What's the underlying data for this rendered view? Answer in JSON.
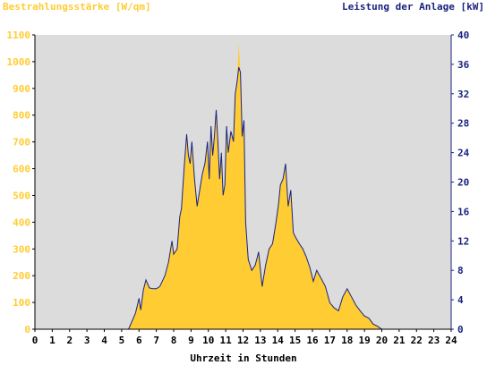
{
  "colors": {
    "plot_bg": "#dcdcdc",
    "irradiance": "#ffcc33",
    "power": "#1a237e",
    "axis_left_text": "#ffcc33",
    "axis_right_text": "#1a237e",
    "x_text": "#000000"
  },
  "chart_data": {
    "type": "area",
    "title_left": "Bestrahlungsstärke [W/qm]",
    "title_right": "Leistung der Anlage [kW]",
    "xlabel": "Uhrzeit in Stunden",
    "x_ticks": [
      "0",
      "1",
      "2",
      "3",
      "4",
      "5",
      "6",
      "7",
      "8",
      "9",
      "10",
      "11",
      "12",
      "13",
      "14",
      "15",
      "16",
      "17",
      "18",
      "19",
      "20",
      "21",
      "22",
      "23",
      "24"
    ],
    "xlim": [
      0,
      24
    ],
    "y_left": {
      "range": [
        0,
        1100
      ],
      "ticks": [
        "0",
        "100",
        "200",
        "300",
        "400",
        "500",
        "600",
        "700",
        "800",
        "900",
        "1000",
        "1100"
      ]
    },
    "y_right": {
      "range": [
        0,
        40
      ],
      "ticks": [
        "0",
        "4",
        "8",
        "12",
        "16",
        "20",
        "24",
        "28",
        "32",
        "36",
        "40"
      ]
    },
    "grid": false,
    "series": [
      {
        "name": "Bestrahlungsstärke [W/qm]",
        "axis": "left",
        "style": "filled-area",
        "x": [
          0,
          5.4,
          5.6,
          5.8,
          6.0,
          6.1,
          6.25,
          6.4,
          6.6,
          6.8,
          7.0,
          7.2,
          7.5,
          7.7,
          7.9,
          8.0,
          8.2,
          8.35,
          8.45,
          8.6,
          8.75,
          8.85,
          8.95,
          9.05,
          9.2,
          9.35,
          9.5,
          9.65,
          9.8,
          9.95,
          10.05,
          10.15,
          10.25,
          10.35,
          10.45,
          10.55,
          10.65,
          10.75,
          10.85,
          10.95,
          11.05,
          11.15,
          11.3,
          11.45,
          11.55,
          11.65,
          11.75,
          11.85,
          11.95,
          12.05,
          12.15,
          12.3,
          12.5,
          12.7,
          12.9,
          13.1,
          13.3,
          13.5,
          13.7,
          13.9,
          14.05,
          14.15,
          14.3,
          14.45,
          14.6,
          14.75,
          14.9,
          15.05,
          15.25,
          15.45,
          15.65,
          15.85,
          16.05,
          16.25,
          16.5,
          16.75,
          17.0,
          17.25,
          17.5,
          17.75,
          18.0,
          18.25,
          18.5,
          18.75,
          19.0,
          19.25,
          19.5,
          19.75,
          20.0,
          20.3,
          24
        ],
        "y": [
          0,
          0,
          30,
          60,
          110,
          70,
          140,
          180,
          150,
          150,
          150,
          160,
          200,
          250,
          330,
          280,
          300,
          420,
          450,
          600,
          740,
          650,
          620,
          700,
          560,
          460,
          520,
          580,
          620,
          700,
          560,
          760,
          650,
          720,
          820,
          700,
          560,
          660,
          500,
          540,
          760,
          660,
          740,
          700,
          880,
          920,
          1070,
          960,
          720,
          780,
          400,
          260,
          220,
          240,
          290,
          160,
          240,
          300,
          320,
          400,
          470,
          540,
          560,
          620,
          460,
          520,
          360,
          340,
          320,
          300,
          270,
          230,
          180,
          220,
          190,
          160,
          100,
          80,
          70,
          120,
          150,
          120,
          90,
          70,
          50,
          40,
          20,
          10,
          0,
          0,
          0
        ]
      },
      {
        "name": "Leistung der Anlage [kW]",
        "axis": "right",
        "style": "line",
        "x": [
          0,
          5.4,
          5.6,
          5.8,
          6.0,
          6.1,
          6.25,
          6.4,
          6.6,
          6.8,
          7.0,
          7.2,
          7.5,
          7.7,
          7.9,
          8.0,
          8.2,
          8.35,
          8.45,
          8.6,
          8.75,
          8.85,
          8.95,
          9.05,
          9.2,
          9.35,
          9.5,
          9.65,
          9.8,
          9.95,
          10.05,
          10.15,
          10.25,
          10.35,
          10.45,
          10.55,
          10.65,
          10.75,
          10.85,
          10.95,
          11.05,
          11.15,
          11.3,
          11.45,
          11.55,
          11.65,
          11.75,
          11.85,
          11.95,
          12.05,
          12.15,
          12.3,
          12.5,
          12.7,
          12.9,
          13.1,
          13.3,
          13.5,
          13.7,
          13.9,
          14.05,
          14.15,
          14.3,
          14.45,
          14.6,
          14.75,
          14.9,
          15.05,
          15.25,
          15.45,
          15.65,
          15.85,
          16.05,
          16.25,
          16.5,
          16.75,
          17.0,
          17.25,
          17.5,
          17.75,
          18.0,
          18.25,
          18.5,
          18.75,
          19.0,
          19.25,
          19.5,
          19.75,
          20.0,
          20.3,
          24
        ],
        "y": [
          0,
          0,
          1.1,
          2.2,
          4.2,
          2.6,
          5.3,
          6.7,
          5.6,
          5.5,
          5.5,
          5.8,
          7.3,
          9.1,
          12.0,
          10.2,
          10.9,
          15.3,
          16.4,
          21.8,
          26.5,
          23.6,
          22.5,
          25.5,
          20.4,
          16.7,
          18.9,
          21.1,
          22.5,
          25.5,
          20.4,
          27.6,
          23.6,
          26.2,
          29.8,
          25.5,
          20.4,
          24.0,
          18.2,
          19.6,
          27.6,
          24.0,
          26.9,
          25.5,
          32.0,
          33.5,
          35.6,
          34.9,
          26.2,
          28.4,
          14.5,
          9.5,
          8.0,
          8.7,
          10.5,
          5.8,
          8.7,
          10.9,
          11.6,
          14.5,
          17.1,
          19.6,
          20.4,
          22.5,
          16.7,
          18.9,
          13.1,
          12.4,
          11.6,
          10.9,
          9.8,
          8.4,
          6.5,
          8.0,
          6.9,
          5.8,
          3.6,
          2.9,
          2.5,
          4.4,
          5.5,
          4.4,
          3.3,
          2.5,
          1.8,
          1.5,
          0.7,
          0.4,
          0,
          0,
          0
        ]
      }
    ]
  }
}
